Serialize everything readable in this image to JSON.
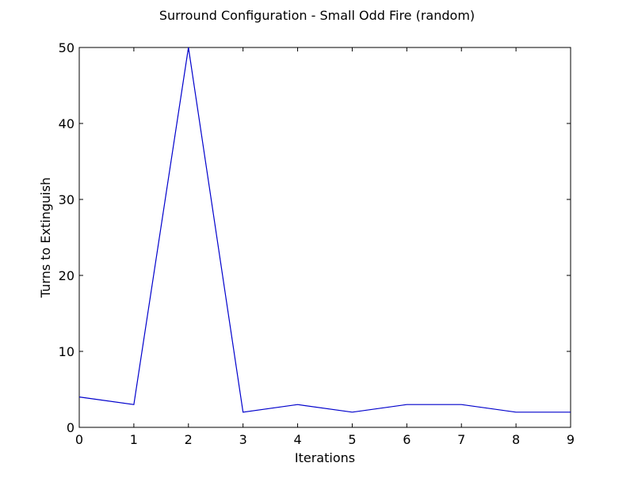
{
  "chart_data": {
    "type": "line",
    "title": "Surround Configuration - Small Odd Fire (random)",
    "xlabel": "Iterations",
    "ylabel": "Turns to Extinguish",
    "x": [
      0,
      1,
      2,
      3,
      4,
      5,
      6,
      7,
      8,
      9
    ],
    "series": [
      {
        "values": [
          4,
          3,
          50,
          2,
          3,
          2,
          3,
          3,
          2,
          2
        ],
        "color": "#0000cc"
      }
    ],
    "xlim": [
      0,
      9
    ],
    "ylim": [
      0,
      50
    ],
    "xticks": [
      0,
      1,
      2,
      3,
      4,
      5,
      6,
      7,
      8,
      9
    ],
    "yticks": [
      0,
      10,
      20,
      30,
      40,
      50
    ],
    "grid": false,
    "legend": "none"
  }
}
